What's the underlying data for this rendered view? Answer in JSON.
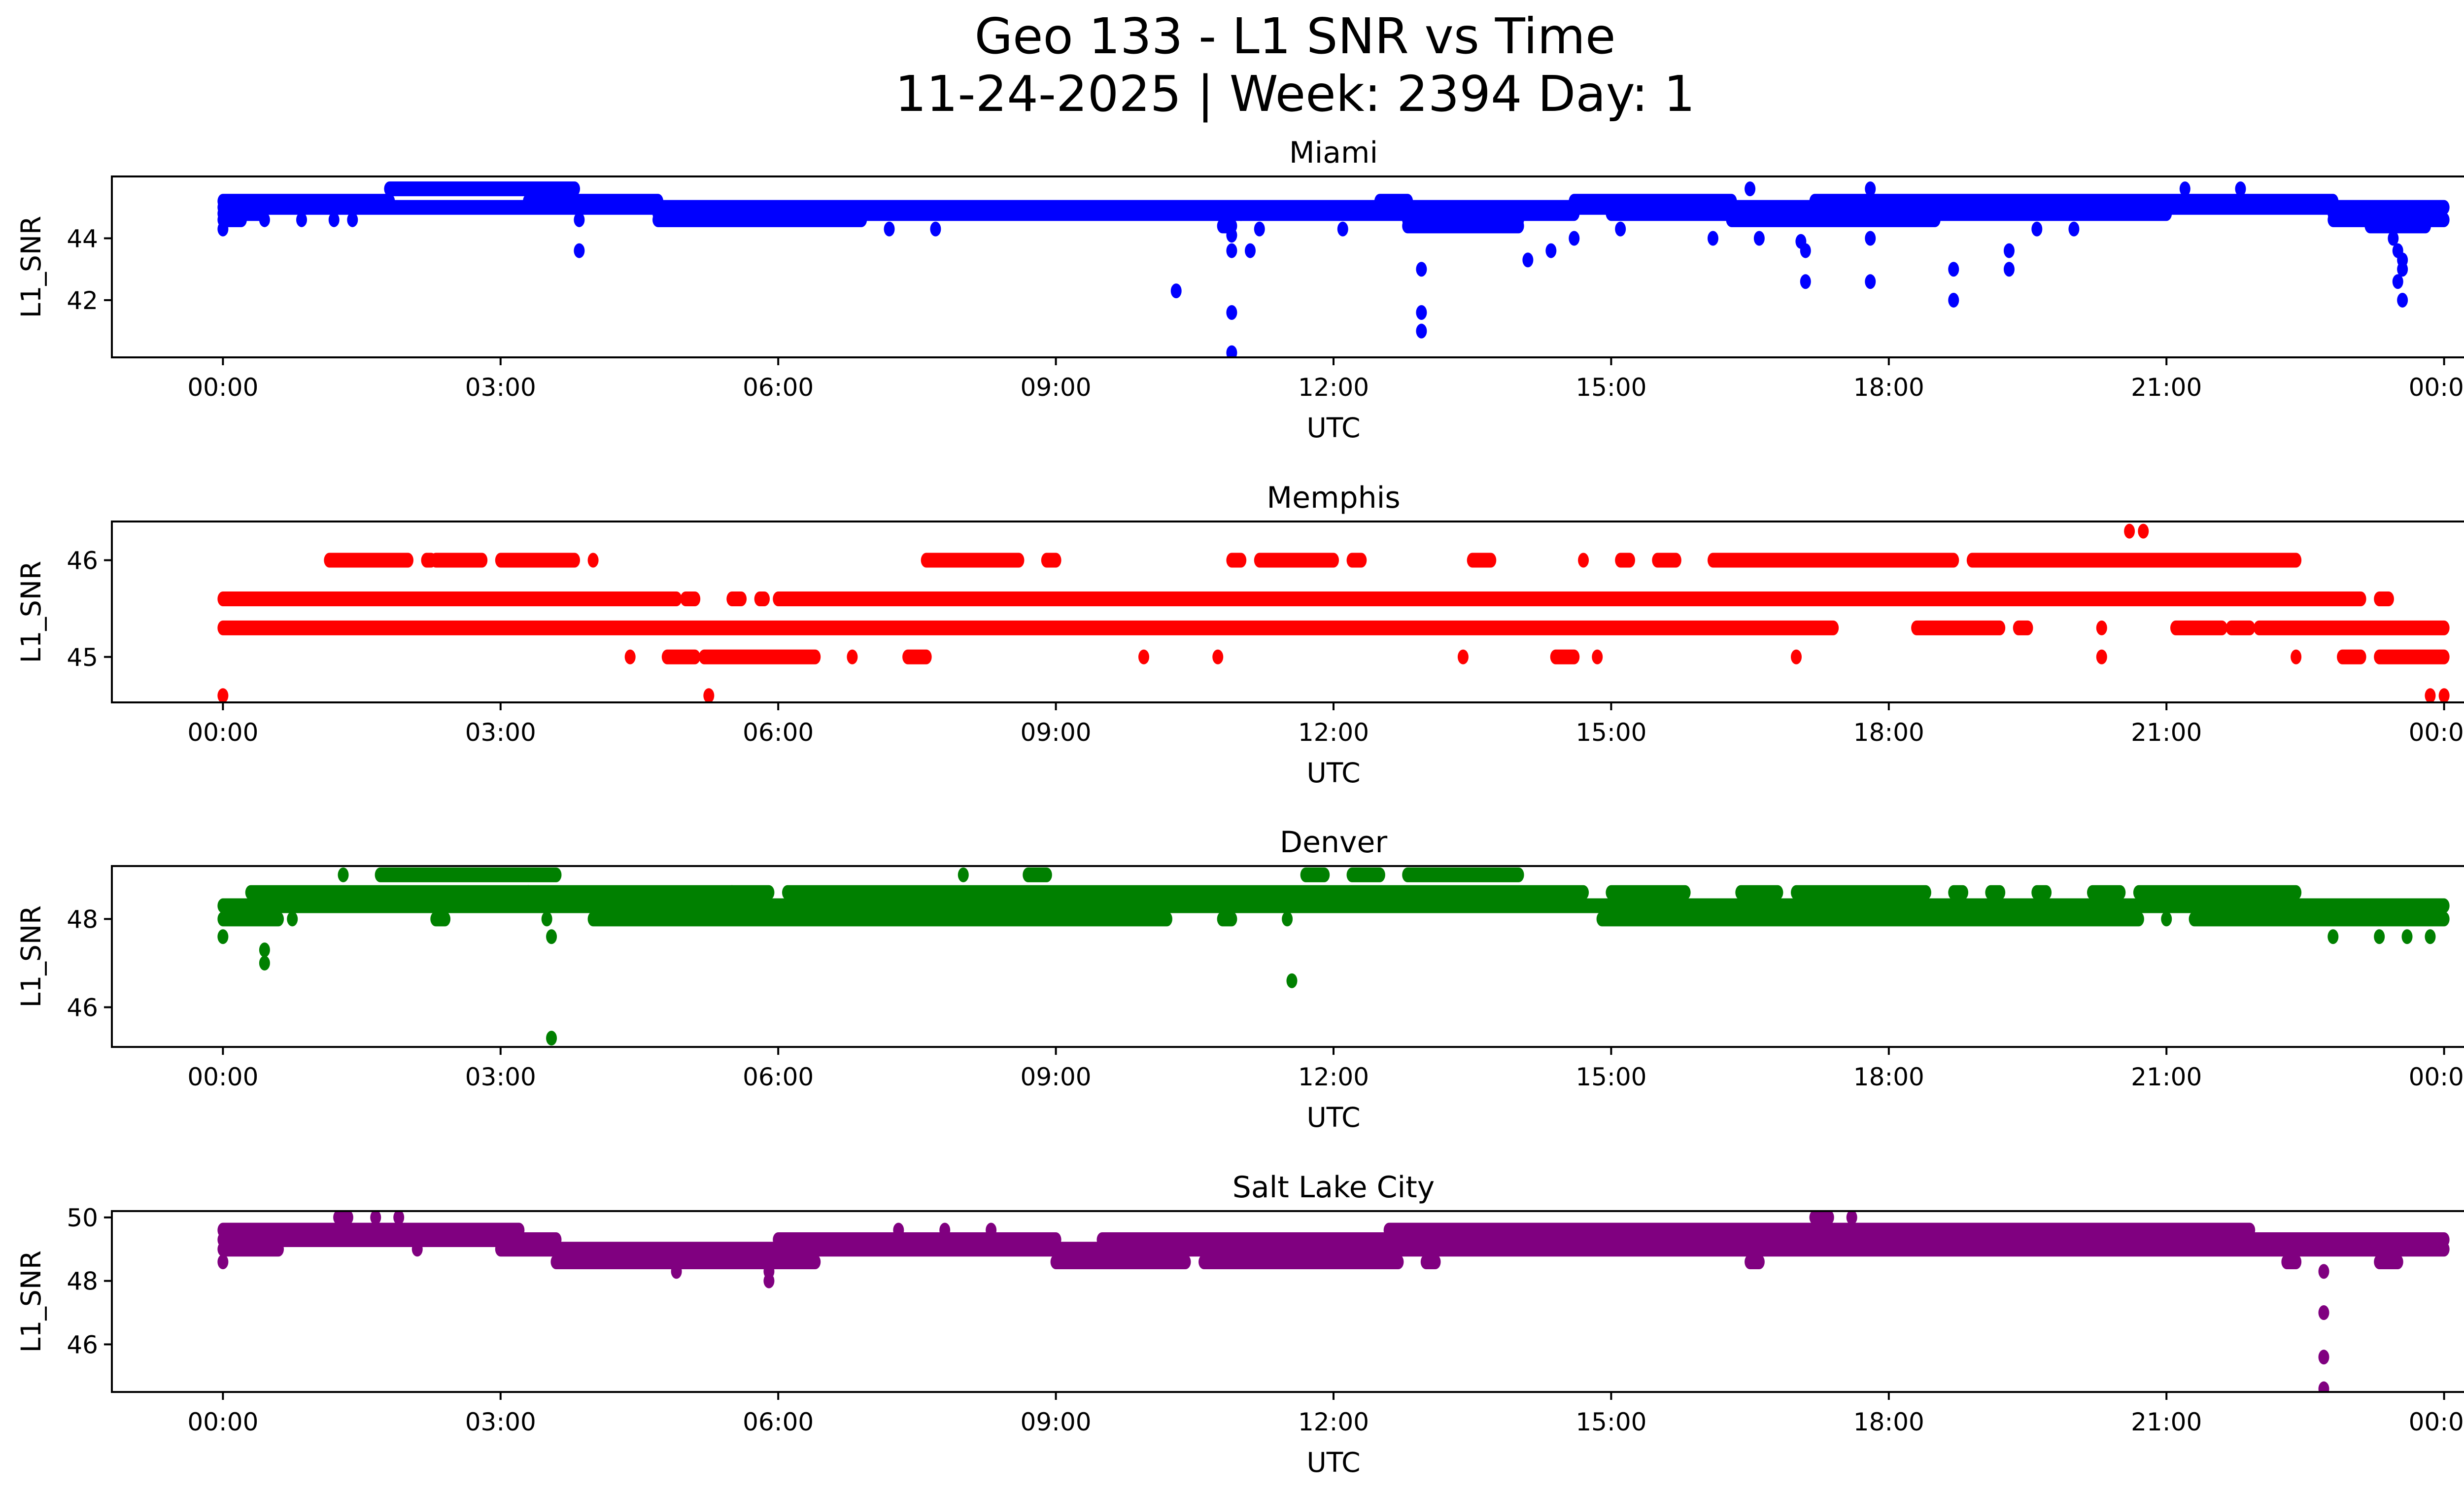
{
  "chart_data": {
    "type": "scatter",
    "title": "Geo 133 - L1 SNR vs Time",
    "subtitle": "11-24-2025 | Week: 2394 Day: 1",
    "xlabel": "UTC",
    "ylabel": "L1_SNR",
    "x_unit": "hours (UTC)",
    "x_ticks": [
      0,
      3,
      6,
      9,
      12,
      15,
      18,
      21,
      24
    ],
    "x_tick_labels": [
      "00:00",
      "03:00",
      "06:00",
      "09:00",
      "12:00",
      "15:00",
      "18:00",
      "21:00",
      "00:00"
    ],
    "xlim": [
      -1.2,
      25.2
    ],
    "grid": false,
    "legend": "none",
    "panels": [
      {
        "name": "Miami",
        "color": "#0000ff",
        "ylim": [
          40.15,
          46.0
        ],
        "y_ticks": [
          42,
          44
        ],
        "y_tick_labels": [
          "42",
          "44"
        ],
        "bands": [
          {
            "y": 45.2,
            "x": [
              [
                0.0,
                1.8
              ],
              [
                3.3,
                3.8
              ],
              [
                3.8,
                4.7
              ],
              [
                12.5,
                12.8
              ],
              [
                14.6,
                16.3
              ],
              [
                17.2,
                22.8
              ]
            ]
          },
          {
            "y": 45.6,
            "x": [
              [
                1.8,
                3.8
              ],
              [
                16.5,
                16.5
              ],
              [
                17.8,
                17.8
              ],
              [
                21.2,
                21.2
              ],
              [
                21.8,
                21.8
              ]
            ]
          },
          {
            "y": 45.0,
            "x": [
              [
                0.0,
                24.0
              ]
            ]
          },
          {
            "y": 44.8,
            "x": [
              [
                0.0,
                0.4
              ],
              [
                4.7,
                11.0
              ],
              [
                11.0,
                12.8
              ],
              [
                13.3,
                14.6
              ],
              [
                15.0,
                21.0
              ],
              [
                22.8,
                23.9
              ]
            ]
          },
          {
            "y": 44.6,
            "x": [
              [
                0.0,
                0.2
              ],
              [
                4.7,
                6.9
              ],
              [
                12.8,
                14.0
              ],
              [
                16.3,
                18.5
              ],
              [
                22.8,
                24.0
              ]
            ]
          },
          {
            "y": 44.4,
            "x": [
              [
                10.8,
                10.9
              ],
              [
                12.8,
                14.0
              ],
              [
                23.2,
                23.8
              ]
            ]
          }
        ],
        "points": [
          [
            0.0,
            44.3
          ],
          [
            0.45,
            44.6
          ],
          [
            0.85,
            44.6
          ],
          [
            1.2,
            44.6
          ],
          [
            1.4,
            44.6
          ],
          [
            3.85,
            44.6
          ],
          [
            3.85,
            43.6
          ],
          [
            7.2,
            44.3
          ],
          [
            7.7,
            44.3
          ],
          [
            10.3,
            42.3
          ],
          [
            10.9,
            41.6
          ],
          [
            10.9,
            40.3
          ],
          [
            10.9,
            44.1
          ],
          [
            10.9,
            43.6
          ],
          [
            11.1,
            43.6
          ],
          [
            11.2,
            44.3
          ],
          [
            12.1,
            44.3
          ],
          [
            12.95,
            43.0
          ],
          [
            12.95,
            41.6
          ],
          [
            12.95,
            41.0
          ],
          [
            14.1,
            43.3
          ],
          [
            14.35,
            43.6
          ],
          [
            14.6,
            44.0
          ],
          [
            15.1,
            44.3
          ],
          [
            16.1,
            44.0
          ],
          [
            16.6,
            44.0
          ],
          [
            17.05,
            43.9
          ],
          [
            17.1,
            43.6
          ],
          [
            17.1,
            42.6
          ],
          [
            17.8,
            42.6
          ],
          [
            17.8,
            44.0
          ],
          [
            18.7,
            43.0
          ],
          [
            18.7,
            42.0
          ],
          [
            19.3,
            43.6
          ],
          [
            19.3,
            43.0
          ],
          [
            19.6,
            44.3
          ],
          [
            20.0,
            44.3
          ],
          [
            23.45,
            44.0
          ],
          [
            23.5,
            43.6
          ],
          [
            23.55,
            43.3
          ],
          [
            23.55,
            43.0
          ],
          [
            23.5,
            42.6
          ],
          [
            23.55,
            42.0
          ]
        ]
      },
      {
        "name": "Memphis",
        "color": "#ff0000",
        "ylim": [
          44.53,
          46.4
        ],
        "y_ticks": [
          45,
          46
        ],
        "y_tick_labels": [
          "45",
          "46"
        ],
        "bands": [
          {
            "y": 46.0,
            "x": [
              [
                1.15,
                2.0
              ],
              [
                2.2,
                2.25
              ],
              [
                2.3,
                2.8
              ],
              [
                3.0,
                3.8
              ],
              [
                4.0,
                4.0
              ],
              [
                7.6,
                8.6
              ],
              [
                8.9,
                9.0
              ],
              [
                10.9,
                11.0
              ],
              [
                11.2,
                12.0
              ],
              [
                12.2,
                12.3
              ],
              [
                13.5,
                13.7
              ],
              [
                14.7,
                14.7
              ],
              [
                15.1,
                15.2
              ],
              [
                15.5,
                15.7
              ],
              [
                16.1,
                16.6
              ],
              [
                16.6,
                17.0
              ],
              [
                17.0,
                18.7
              ],
              [
                18.9,
                22.4
              ]
            ]
          },
          {
            "y": 45.6,
            "x": [
              [
                0.0,
                4.9
              ],
              [
                5.0,
                5.1
              ],
              [
                5.5,
                5.6
              ],
              [
                5.8,
                5.85
              ],
              [
                6.0,
                7.3
              ],
              [
                7.3,
                23.1
              ],
              [
                23.3,
                23.4
              ]
            ]
          },
          {
            "y": 45.3,
            "x": [
              [
                0.0,
                17.4
              ],
              [
                18.3,
                19.2
              ],
              [
                19.4,
                19.5
              ],
              [
                20.3,
                20.3
              ],
              [
                21.1,
                21.6
              ],
              [
                21.7,
                21.9
              ],
              [
                22.0,
                24.0
              ]
            ]
          },
          {
            "y": 45.0,
            "x": [
              [
                4.4,
                4.4
              ],
              [
                4.8,
                5.1
              ],
              [
                5.2,
                6.4
              ],
              [
                6.8,
                6.8
              ],
              [
                7.4,
                7.6
              ],
              [
                9.95,
                9.95
              ],
              [
                10.75,
                10.75
              ],
              [
                13.4,
                13.4
              ],
              [
                14.4,
                14.6
              ],
              [
                14.85,
                14.85
              ],
              [
                17.0,
                17.0
              ],
              [
                20.3,
                20.3
              ],
              [
                22.4,
                22.4
              ],
              [
                22.9,
                23.1
              ],
              [
                23.3,
                24.0
              ]
            ]
          }
        ],
        "points": [
          [
            0.0,
            44.6
          ],
          [
            5.25,
            44.6
          ],
          [
            20.6,
            46.3
          ],
          [
            20.75,
            46.3
          ],
          [
            23.85,
            44.6
          ],
          [
            24.0,
            44.6
          ]
        ]
      },
      {
        "name": "Denver",
        "color": "#008000",
        "ylim": [
          45.1,
          49.2
        ],
        "y_ticks": [
          46,
          48
        ],
        "y_tick_labels": [
          "46",
          "48"
        ],
        "bands": [
          {
            "y": 49.0,
            "x": [
              [
                1.3,
                1.3
              ],
              [
                1.7,
                3.6
              ],
              [
                8.0,
                8.0
              ],
              [
                8.7,
                8.9
              ],
              [
                11.7,
                11.9
              ],
              [
                12.2,
                12.5
              ],
              [
                12.8,
                14.0
              ]
            ]
          },
          {
            "y": 48.6,
            "x": [
              [
                0.3,
                3.3
              ],
              [
                3.3,
                5.5
              ],
              [
                5.5,
                5.9
              ],
              [
                6.1,
                14.7
              ],
              [
                15.0,
                15.8
              ],
              [
                16.4,
                16.8
              ],
              [
                17.0,
                18.4
              ],
              [
                18.7,
                18.8
              ],
              [
                19.1,
                19.2
              ],
              [
                19.6,
                19.7
              ],
              [
                20.2,
                20.5
              ],
              [
                20.7,
                22.4
              ]
            ]
          },
          {
            "y": 48.3,
            "x": [
              [
                0.0,
                24.0
              ]
            ]
          },
          {
            "y": 48.0,
            "x": [
              [
                0.0,
                0.6
              ],
              [
                0.75,
                0.75
              ],
              [
                2.3,
                2.4
              ],
              [
                3.5,
                3.5
              ],
              [
                4.0,
                10.2
              ],
              [
                10.8,
                10.9
              ],
              [
                11.5,
                11.5
              ],
              [
                14.9,
                20.7
              ],
              [
                21.0,
                21.0
              ],
              [
                21.3,
                24.0
              ]
            ]
          }
        ],
        "points": [
          [
            0.0,
            47.6
          ],
          [
            0.45,
            47.3
          ],
          [
            0.45,
            47.0
          ],
          [
            3.55,
            47.6
          ],
          [
            3.55,
            45.3
          ],
          [
            11.55,
            46.6
          ],
          [
            22.8,
            47.6
          ],
          [
            23.3,
            47.6
          ],
          [
            23.6,
            47.6
          ],
          [
            23.85,
            47.6
          ]
        ]
      },
      {
        "name": "Salt Lake City",
        "color": "#800080",
        "ylim": [
          44.5,
          50.2
        ],
        "y_ticks": [
          46,
          48,
          50
        ],
        "y_tick_labels": [
          "46",
          "48",
          "50"
        ],
        "bands": [
          {
            "y": 50.0,
            "x": [
              [
                1.25,
                1.35
              ],
              [
                1.65,
                1.65
              ],
              [
                1.9,
                1.9
              ],
              [
                17.2,
                17.35
              ],
              [
                17.6,
                17.6
              ]
            ]
          },
          {
            "y": 49.6,
            "x": [
              [
                0.0,
                3.2
              ],
              [
                7.3,
                7.3
              ],
              [
                7.8,
                7.8
              ],
              [
                8.3,
                8.3
              ],
              [
                12.6,
                21.9
              ]
            ]
          },
          {
            "y": 49.3,
            "x": [
              [
                0.0,
                3.6
              ],
              [
                6.0,
                9.0
              ],
              [
                9.5,
                24.0
              ]
            ]
          },
          {
            "y": 49.0,
            "x": [
              [
                0.0,
                0.6
              ],
              [
                2.1,
                2.1
              ],
              [
                3.0,
                6.0
              ],
              [
                6.0,
                24.0
              ]
            ]
          },
          {
            "y": 48.6,
            "x": [
              [
                3.6,
                6.4
              ],
              [
                9.0,
                10.4
              ],
              [
                10.6,
                12.7
              ],
              [
                13.0,
                13.1
              ],
              [
                16.5,
                16.6
              ],
              [
                22.3,
                22.4
              ],
              [
                23.3,
                23.5
              ]
            ]
          }
        ],
        "points": [
          [
            0.0,
            48.6
          ],
          [
            4.9,
            48.3
          ],
          [
            5.9,
            48.0
          ],
          [
            5.9,
            48.3
          ],
          [
            22.7,
            48.3
          ],
          [
            22.7,
            47.0
          ],
          [
            22.7,
            45.6
          ],
          [
            22.7,
            44.6
          ]
        ]
      }
    ]
  }
}
